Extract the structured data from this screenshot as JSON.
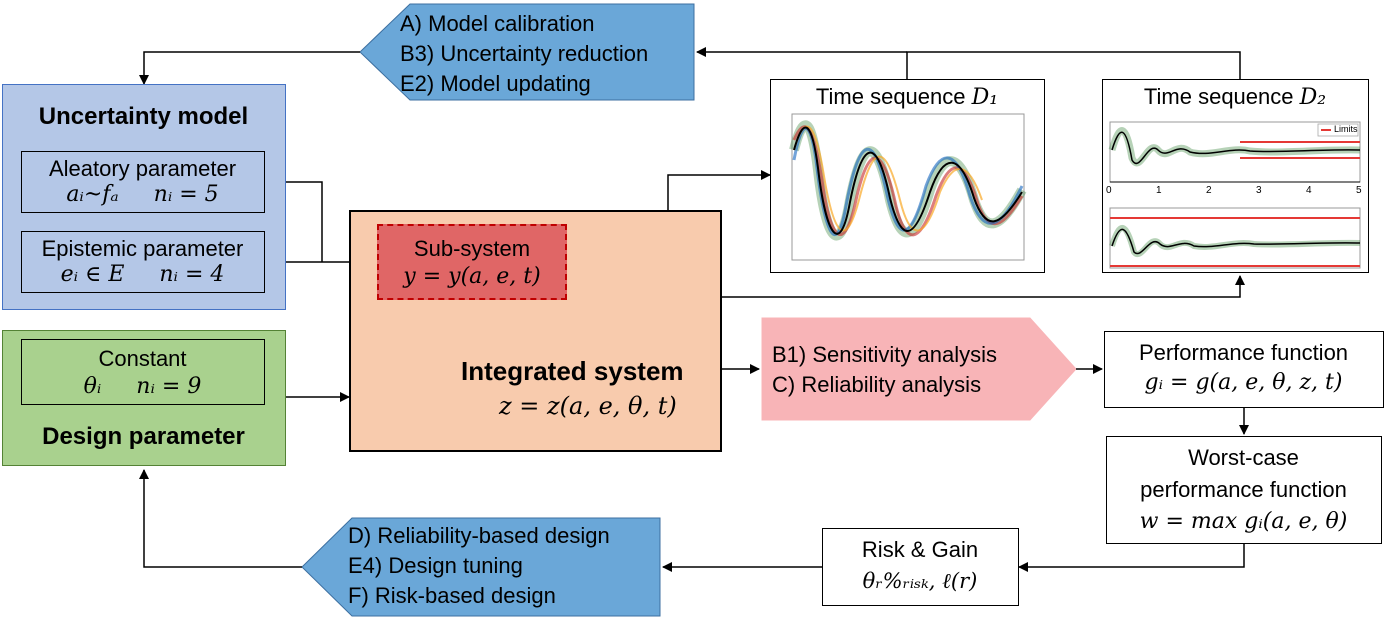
{
  "top_actions": {
    "items": [
      "A) Model calibration",
      "B3) Uncertainty reduction",
      "E2) Model updating"
    ],
    "color": "#6aa7d8"
  },
  "bottom_actions": {
    "items": [
      "D) Reliability-based design",
      "E4) Design tuning",
      "F) Risk-based design"
    ],
    "color": "#6aa7d8"
  },
  "analysis_actions": {
    "items": [
      "B1) Sensitivity analysis",
      "C) Reliability analysis"
    ],
    "color": "#f8b4b7"
  },
  "uncertainty_model": {
    "title": "Uncertainty model",
    "color": "#b4c7e7",
    "aleatory": {
      "label": "Aleatory parameter",
      "formula": "aᵢ~fₐ     nᵢ = 5"
    },
    "epistemic": {
      "label": "Epistemic parameter",
      "formula": "eᵢ ∈ E     nᵢ = 4"
    }
  },
  "design_parameter": {
    "title": "Design parameter",
    "color": "#a9d18e",
    "constant": {
      "label": "Constant",
      "formula": "θᵢ     nᵢ = 9"
    }
  },
  "integrated_system": {
    "title": "Integrated system",
    "formula": "z = z(a, e, θ, t)",
    "color": "#f8cbad",
    "subsystem": {
      "label": "Sub-system",
      "formula": "y = y(a, e, t)",
      "color": "#e06666"
    }
  },
  "time_seq_1": {
    "title": "Time sequence ",
    "symbol": "D₁"
  },
  "time_seq_2": {
    "title": "Time sequence ",
    "symbol": "D₂",
    "legend": "Limits",
    "ticks": [
      "0",
      "1",
      "2",
      "3",
      "4",
      "5"
    ]
  },
  "performance_function": {
    "title": "Performance function",
    "formula": "gᵢ = g(a, e, θ, z, t)"
  },
  "worst_case": {
    "line1": "Worst-case",
    "line2": "performance function",
    "formula": "w = max gᵢ(a, e, θ)"
  },
  "risk_gain": {
    "title": "Risk & Gain",
    "formula": "θᵣ%ᵣᵢₛₖ, ℓ(r)"
  }
}
